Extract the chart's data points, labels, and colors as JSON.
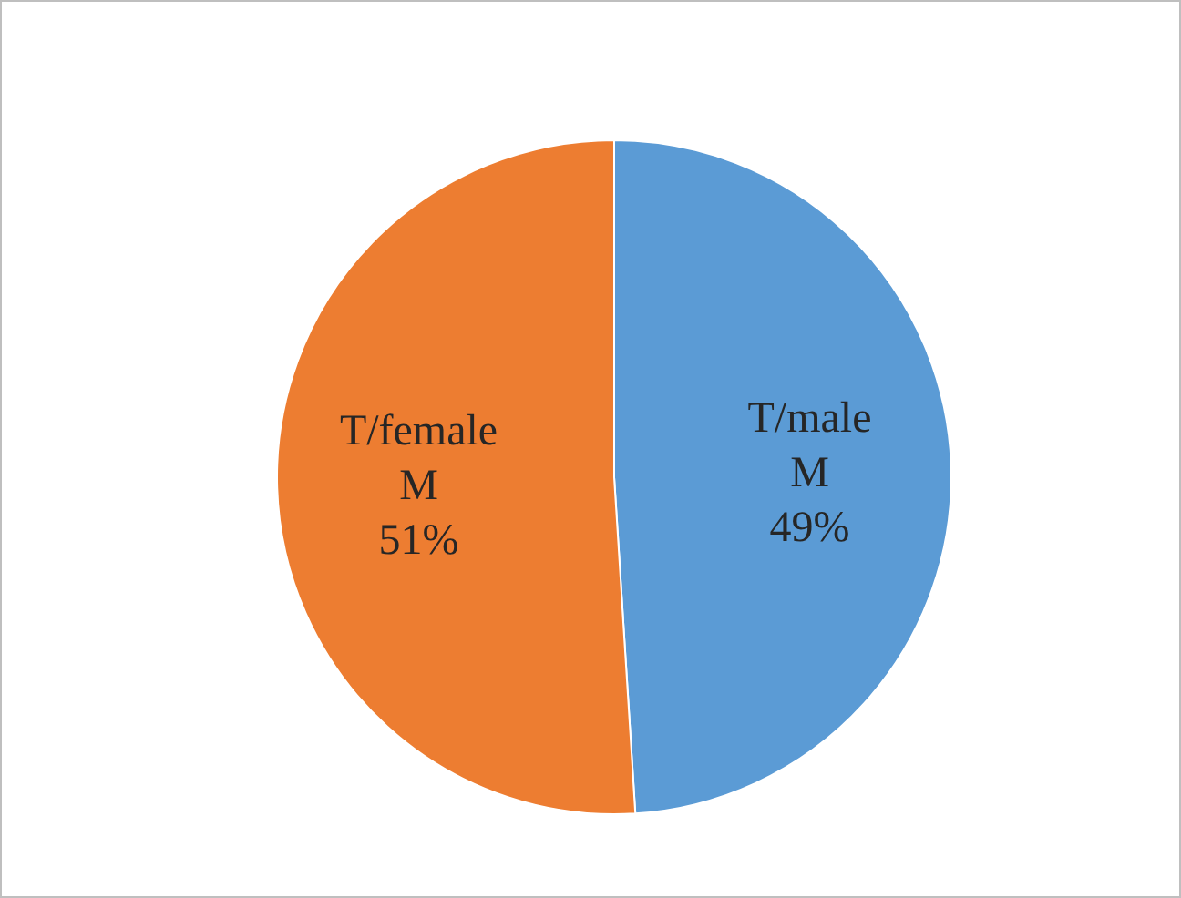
{
  "chart_data": {
    "type": "pie",
    "categories": [
      "T/male M",
      "T/female M"
    ],
    "values": [
      49,
      51
    ],
    "colors": [
      "#5b9bd5",
      "#ed7d31"
    ],
    "value_labels": [
      "49%",
      "51%"
    ]
  }
}
